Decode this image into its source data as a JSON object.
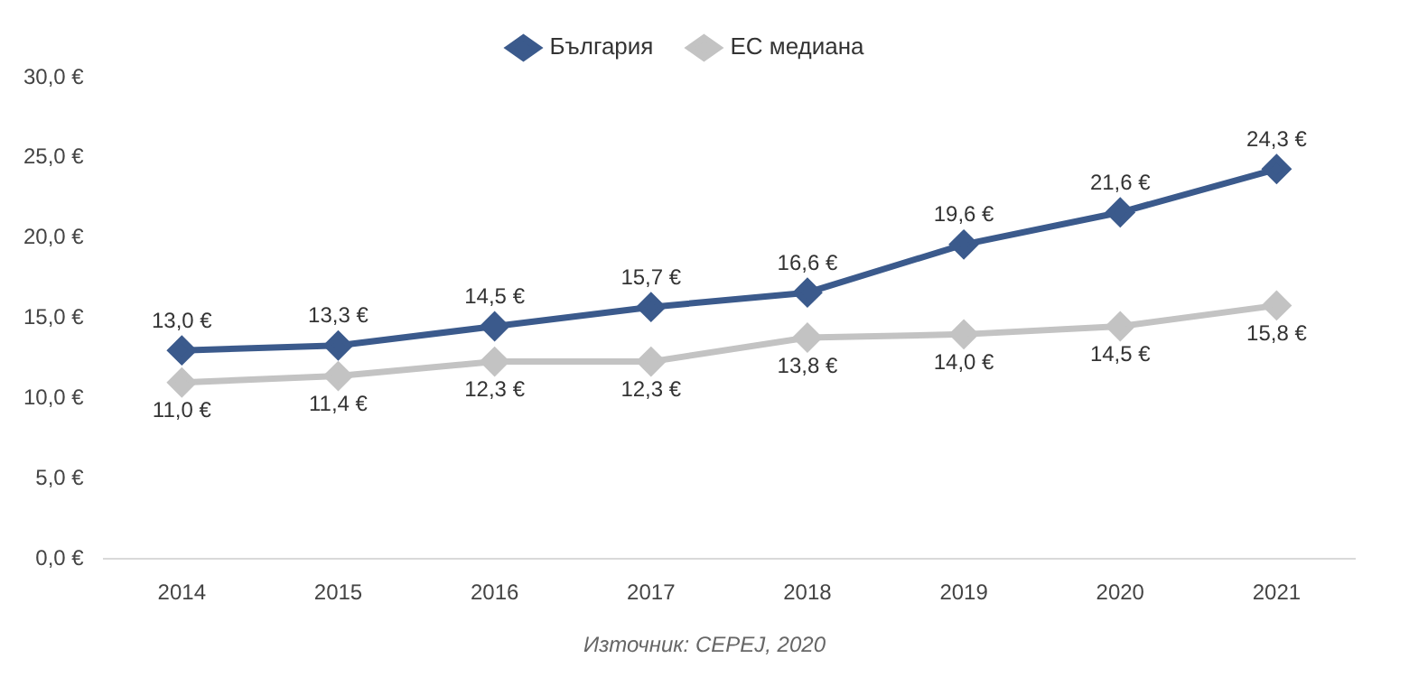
{
  "chart_data": {
    "type": "line",
    "categories": [
      "2014",
      "2015",
      "2016",
      "2017",
      "2018",
      "2019",
      "2020",
      "2021"
    ],
    "series": [
      {
        "name": "България",
        "color": "#3b5a8c",
        "values": [
          13.0,
          13.3,
          14.5,
          15.7,
          16.6,
          19.6,
          21.6,
          24.3
        ],
        "value_labels": [
          "13,0 €",
          "13,3 €",
          "14,5 €",
          "15,7 €",
          "16,6 €",
          "19,6 €",
          "21,6 €",
          "24,3 €"
        ]
      },
      {
        "name": "ЕС медиана",
        "color": "#c3c3c3",
        "values": [
          11.0,
          11.4,
          12.3,
          12.3,
          13.8,
          14.0,
          14.5,
          15.8
        ],
        "value_labels": [
          "11,0 €",
          "11,4 €",
          "12,3 €",
          "12,3 €",
          "13,8 €",
          "14,0 €",
          "14,5 €",
          "15,8 €"
        ]
      }
    ],
    "ylim": [
      0,
      30
    ],
    "yticks": [
      {
        "value": 0,
        "label": "0,0 €"
      },
      {
        "value": 5,
        "label": "5,0 €"
      },
      {
        "value": 10,
        "label": "10,0 €"
      },
      {
        "value": 15,
        "label": "15,0 €"
      },
      {
        "value": 20,
        "label": "20,0 €"
      },
      {
        "value": 25,
        "label": "25,0 €"
      },
      {
        "value": 30,
        "label": "30,0 €"
      }
    ],
    "grid": false,
    "legend": "top",
    "marker": "diamond",
    "line_style": "solid",
    "annotations": [
      "Източник: CEPEJ, 2020"
    ]
  }
}
